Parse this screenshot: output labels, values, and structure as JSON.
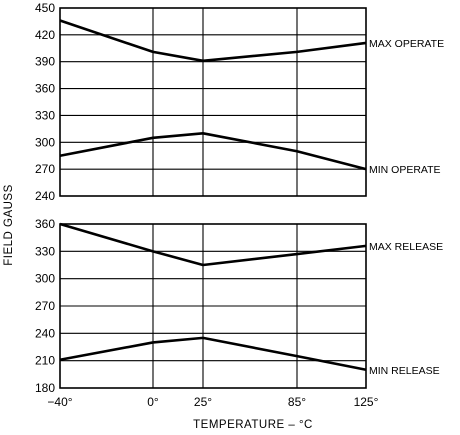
{
  "chart_data": [
    {
      "type": "line",
      "panel": "top",
      "x": [
        -40,
        0,
        25,
        85,
        125
      ],
      "ylim": [
        240,
        450
      ],
      "yticks": [
        450,
        420,
        390,
        360,
        330,
        300,
        270,
        240
      ],
      "series": [
        {
          "name": "MAX OPERATE",
          "values": [
            436,
            401,
            391,
            401,
            411
          ]
        },
        {
          "name": "MIN OPERATE",
          "values": [
            285,
            305,
            310,
            290,
            270
          ]
        }
      ]
    },
    {
      "type": "line",
      "panel": "bottom",
      "x": [
        -40,
        0,
        25,
        85,
        125
      ],
      "ylim": [
        180,
        360
      ],
      "yticks": [
        360,
        330,
        300,
        270,
        240,
        210,
        180
      ],
      "series": [
        {
          "name": "MAX RELEASE",
          "values": [
            360,
            330,
            315,
            327,
            336
          ]
        },
        {
          "name": "MIN RELEASE",
          "values": [
            211,
            230,
            235,
            215,
            200
          ]
        }
      ]
    }
  ],
  "x_tick_labels": [
    "−40°",
    "0°",
    "25°",
    "85°",
    "125°"
  ],
  "xlabel": "TEMPERATURE – °C",
  "ylabel": "FIELD GAUSS",
  "grid": true
}
